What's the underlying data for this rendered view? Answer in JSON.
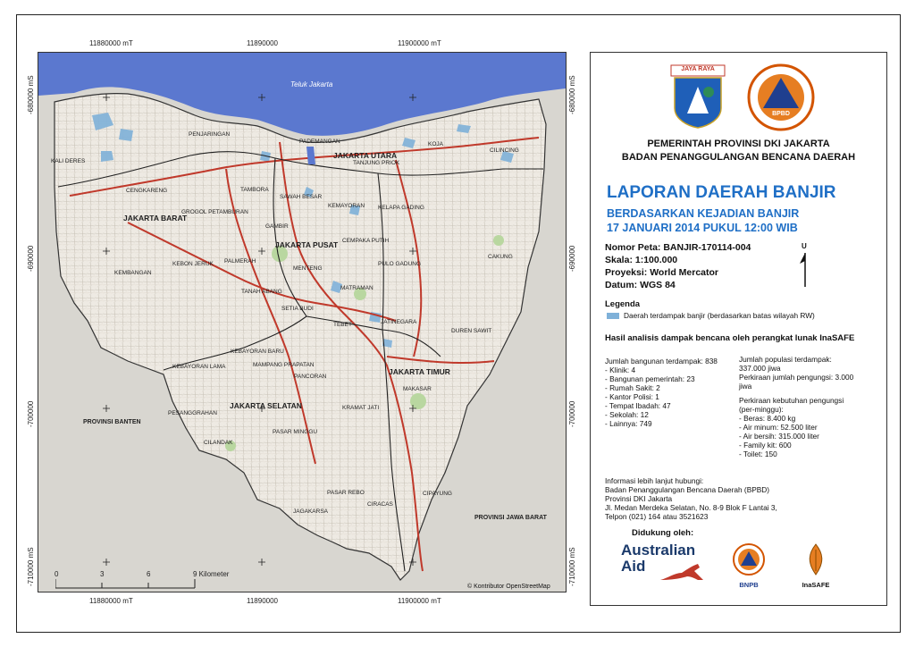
{
  "map": {
    "coord_top": [
      "11880000 mT",
      "11890000",
      "11900000 mT"
    ],
    "coord_bottom": [
      "11880000 mT",
      "11890000",
      "11900000 mT"
    ],
    "coord_left": [
      "-680000 mS",
      "-690000",
      "-700000",
      "-710000 mS"
    ],
    "coord_right": [
      "-680000 mS",
      "-690000",
      "-700000",
      "-710000 mS"
    ],
    "sea_label": "Teluk Jakarta",
    "region_labels": [
      "JAKARTA UTARA",
      "JAKARTA BARAT",
      "JAKARTA PUSAT",
      "JAKARTA SELATAN",
      "JAKARTA TIMUR"
    ],
    "district_labels": [
      "PENJARINGAN",
      "PADEMANGAN",
      "KOJA",
      "CILINCING",
      "KALI DERES",
      "TANJUNG PRIOK",
      "TAMBORA",
      "SAWAH BESAR",
      "CENGKARENG",
      "KEMAYORAN",
      "KELAPA GADING",
      "GROGOL PETAMBURAN",
      "CEMPAKA PUTIH",
      "KEBON JERUK",
      "PALMERAH",
      "GAMBIR",
      "MENTENG",
      "PULO GADUNG",
      "CAKUNG",
      "KEMBANGAN",
      "TANAH ABANG",
      "MATRAMAN",
      "SETIA BUDI",
      "JATINEGARA",
      "TEBET",
      "DUREN SAWIT",
      "KEBAYORAN BARU",
      "KEBAYORAN LAMA",
      "MAMPANG PRAPATAN",
      "PANCORAN",
      "MAKASAR",
      "KRAMAT JATI",
      "PESANGGRAHAN",
      "PASAR MINGGU",
      "CILANDAK",
      "PASAR REBO",
      "CIRACAS",
      "JAGAKARSA",
      "CIPAYUNG"
    ],
    "province_labels": [
      "PROVINSI BANTEN",
      "PROVINSI JAWA BARAT"
    ],
    "scale_ticks": [
      "0",
      "3",
      "6",
      "9 Kilometer"
    ],
    "copyright": "© Kontributor OpenStreetMap"
  },
  "panel": {
    "logos": [
      "JAYA RAYA",
      "BPBD"
    ],
    "org_line1": "PEMERINTAH PROVINSI DKI JAKARTA",
    "org_line2": "BADAN PENANGGULANGAN BENCANA DAERAH",
    "title": "LAPORAN DAERAH BANJIR",
    "subtitle1": "BERDASARKAN KEJADIAN BANJIR",
    "subtitle2": "17 JANUARI 2014 PUKUL 12:00 WIB",
    "map_number": "Nomor Peta: BANJIR-170114-004",
    "scale": "Skala: 1:100.000",
    "projection": "Proyeksi: World Mercator",
    "datum": "Datum: WGS 84",
    "north": "U",
    "legend_title": "Legenda",
    "legend_item": "Daerah terdampak banjir (berdasarkan batas wilayah RW)",
    "analysis_title": "Hasil analisis dampak bencana oleh perangkat lunak InaSAFE",
    "buildings": [
      "Jumlah bangunan terdampak: 838",
      "- Klinik: 4",
      "- Bangunan pemerintah: 23",
      "- Rumah Sakit: 2",
      "- Kantor Polisi: 1",
      "- Tempat Ibadah: 47",
      "- Sekolah: 12",
      "- Lainnya: 749"
    ],
    "population": [
      "Jumlah populasi terdampak:",
      "337.000 jiwa",
      "Perkiraan jumlah pengungsi: 3.000",
      "jiwa",
      "",
      "Perkiraan kebutuhan pengungsi",
      "(per-minggu):",
      "- Beras: 8.400 kg",
      "- Air minum: 52.500 liter",
      "- Air bersih: 315.000 liter",
      "- Family kit: 600",
      "- Toilet: 150"
    ],
    "contact": [
      "Informasi lebih lanjut hubungi:",
      "Badan Penanggulangan Bencana Daerah (BPBD)",
      "Provinsi DKI Jakarta",
      "Jl. Medan Merdeka Selatan, No. 8-9 Blok F Lantai 3,",
      "Telpon (021) 164 atau 3521623"
    ],
    "supported_by": "Didukung oleh:",
    "sponsor1_a": "Australian",
    "sponsor1_b": "Aid",
    "sponsor2": "BNPB",
    "sponsor3": "InaSAFE",
    "colors": {
      "title_blue": "#1f6fc6",
      "sea": "#5b78cf",
      "flood": "#7fb1d9",
      "road_red": "#c0392b"
    }
  }
}
